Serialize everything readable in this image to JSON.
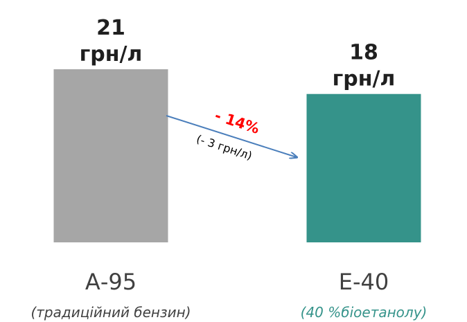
{
  "colors": {
    "bar_a95": "#a6a6a6",
    "bar_e40": "#35938a",
    "arrow": "#4a7ebb",
    "change_pct": "#ff0000",
    "sub_a95": "#404040",
    "sub_e40": "#35938a"
  },
  "chart_data": {
    "type": "bar",
    "categories": [
      "А-95",
      "Е-40"
    ],
    "values": [
      21,
      18
    ],
    "value_labels": [
      [
        "21",
        "грн/л"
      ],
      [
        "18",
        "грн/л"
      ]
    ],
    "subtitles": [
      "(традиційний бензин)",
      "(40 %біоетанолу)"
    ],
    "annotation": {
      "change_percent": "- 14%",
      "change_absolute": "(- 3 грн/л)"
    },
    "ylim": [
      0,
      21
    ],
    "grid": false,
    "legend": "none"
  }
}
